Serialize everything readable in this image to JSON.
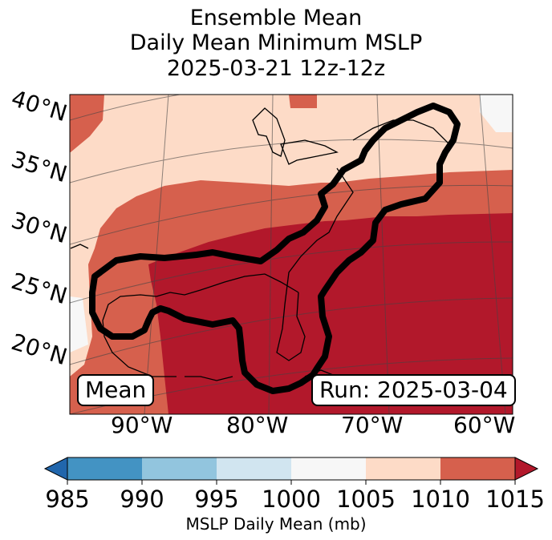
{
  "title": {
    "line1": "Ensemble Mean",
    "line2": "Daily Mean Minimum MSLP",
    "line3": "2025-03-21 12z-12z"
  },
  "map": {
    "lat_labels": [
      "40°N",
      "35°N",
      "30°N",
      "25°N",
      "20°N"
    ],
    "lon_labels": [
      "90°W",
      "80°W",
      "70°W",
      "60°W"
    ],
    "mode_label": "Mean",
    "run_label": "Run: 2025-03-04",
    "colors": {
      "below_985": "#2166ac",
      "c985_990": "#4393c3",
      "c990_995": "#92c5de",
      "c995_1000": "#d1e5f0",
      "c1000_1005": "#f7f7f7",
      "c1005_1010": "#fddbc7",
      "c1010_1015": "#d6604d",
      "above_1015": "#b2182b",
      "outline": "#000000"
    }
  },
  "colorbar": {
    "ticks": [
      "985",
      "990",
      "995",
      "1000",
      "1005",
      "1010",
      "1015"
    ],
    "label": "MSLP Daily Mean (mb)"
  }
}
